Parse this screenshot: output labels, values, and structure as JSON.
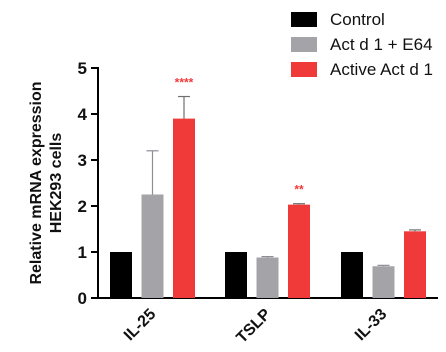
{
  "chart_data": {
    "type": "bar",
    "ylabel": "Relative mRNA expression\nHEK293 cells",
    "xlabel": "",
    "ylim": [
      0,
      5
    ],
    "yticks": [
      "0",
      "1",
      "2",
      "3",
      "4",
      "5"
    ],
    "categories": [
      "IL-25",
      "TSLP",
      "IL-33"
    ],
    "series": [
      {
        "name": "Control",
        "color": "#000000",
        "values": [
          1.0,
          1.0,
          1.0
        ],
        "errors": [
          0,
          0,
          0
        ]
      },
      {
        "name": "Act d 1 + E64",
        "color": "#a3a3a8",
        "values": [
          2.25,
          0.88,
          0.69
        ],
        "errors": [
          0.95,
          0.02,
          0.02
        ]
      },
      {
        "name": "Active Act d 1",
        "color": "#f03a3a",
        "values": [
          3.9,
          2.03,
          1.45
        ],
        "errors": [
          0.48,
          0.02,
          0.03
        ]
      }
    ],
    "annotations": [
      {
        "category": "IL-25",
        "series": "Active Act d 1",
        "text": "****",
        "color": "#f03a3a"
      },
      {
        "category": "TSLP",
        "series": "Active Act d 1",
        "text": "**",
        "color": "#f03a3a"
      }
    ],
    "legend_position": "top-right",
    "grid": false
  }
}
